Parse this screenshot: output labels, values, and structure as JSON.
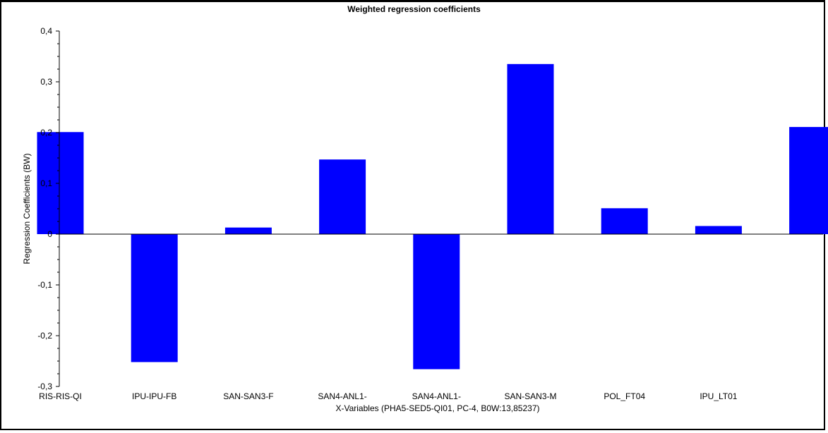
{
  "chart_data": {
    "type": "bar",
    "title": "Weighted regression coefficients",
    "xlabel": "X-Variables (PHA5-SED5-QI01, PC-4, B0W:13,85237)",
    "ylabel": "Regression Coefficients (BW)",
    "ylim": [
      -0.3,
      0.4
    ],
    "yticks": [
      "-0,3",
      "-0,2",
      "-0,1",
      "0",
      "0,1",
      "0,2",
      "0,3",
      "0,4"
    ],
    "categories": [
      "RIS-RIS-QI",
      "IPU-IPU-FB",
      "SAN-SAN3-F",
      "SAN4-ANL1-",
      "SAN4-ANL1-",
      "SAN-SAN3-M",
      "POL_FT04",
      "IPU_LT01",
      ""
    ],
    "values": [
      0.201,
      -0.252,
      0.013,
      0.147,
      -0.266,
      0.335,
      0.051,
      0.016,
      0.211
    ],
    "grid": false,
    "legend": "none",
    "bar_color": "#0000ff"
  }
}
